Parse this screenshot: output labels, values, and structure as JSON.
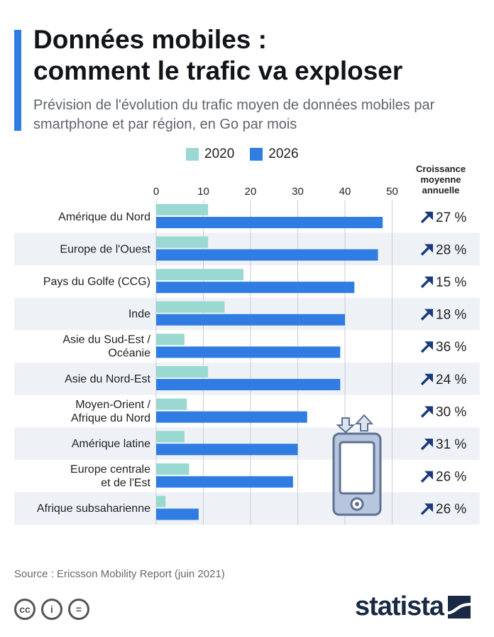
{
  "header": {
    "title": "Données mobiles :\ncomment le trafic va exploser",
    "subtitle": "Prévision de l'évolution du trafic moyen de données mobiles par smartphone et par région, en Go par mois"
  },
  "growth_header": "Croissance moyenne annuelle",
  "source": "Source : Ericsson Mobility Report (juin 2021)",
  "brand": "statista",
  "cc_icons": [
    "cc-icon",
    "by-icon",
    "nd-icon"
  ],
  "colors": {
    "2020": "#9ad8d2",
    "2026": "#2f7ce3",
    "accent": "#2f7ce3",
    "arrow": "#1a3a7a",
    "stripe": "#eef2f7"
  },
  "chart_data": {
    "type": "bar",
    "orientation": "horizontal",
    "categories": [
      "Amérique du Nord",
      "Europe de l'Ouest",
      "Pays du Golfe (CCG)",
      "Inde",
      "Asie du Sud-Est /\nOcéanie",
      "Asie du Nord-Est",
      "Moyen-Orient /\nAfrique du Nord",
      "Amérique latine",
      "Europe centrale\net de l'Est",
      "Afrique subsaharienne"
    ],
    "series": [
      {
        "name": "2020",
        "values": [
          11,
          11,
          18.5,
          14.5,
          6,
          11,
          6.5,
          6,
          7,
          2
        ]
      },
      {
        "name": "2026",
        "values": [
          48,
          47,
          42,
          40,
          39,
          39,
          32,
          30,
          29,
          9
        ]
      }
    ],
    "growth": [
      "27 %",
      "28 %",
      "15 %",
      "18 %",
      "36 %",
      "24 %",
      "30 %",
      "31 %",
      "26 %",
      "26 %"
    ],
    "xticks": [
      0,
      10,
      20,
      30,
      40,
      50
    ],
    "xlim": [
      0,
      50
    ],
    "grid": true,
    "legend": "top"
  }
}
